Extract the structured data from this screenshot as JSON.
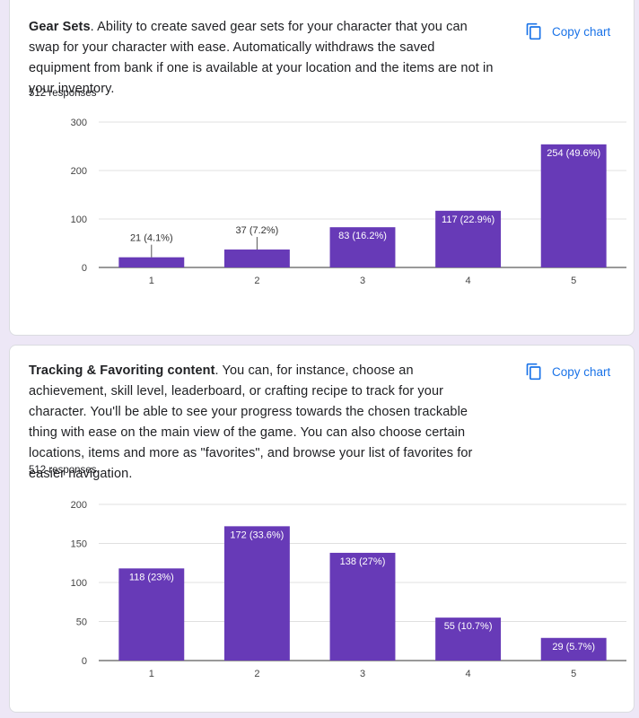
{
  "questions": [
    {
      "title": "Gear Sets",
      "description": ". Ability to create saved gear sets for your character that you can swap for your character with ease. Automatically withdraws the saved equipment from bank if one is available at your location and the items are not in your inventory.",
      "responses": "512 responses",
      "copy_label": "Copy chart"
    },
    {
      "title": "Tracking & Favoriting content",
      "description": ". You can, for instance, choose an achievement, skill level, leaderboard, or crafting recipe to track for your character. You'll be able to see your progress towards the chosen trackable thing with ease on the main view of the game. You can also choose certain locations, items and more as \"favorites\", and browse your list of favorites for easier navigation.",
      "responses": "512 responses",
      "copy_label": "Copy chart"
    }
  ],
  "colors": {
    "bar": "#673ab7",
    "accent": "#1a73e8",
    "grid": "#e0e0e0",
    "background": "#ede7f6"
  },
  "icons": {
    "copy": "copy-icon"
  },
  "chart_data": [
    {
      "type": "bar",
      "categories": [
        "1",
        "2",
        "3",
        "4",
        "5"
      ],
      "values": [
        21,
        37,
        83,
        117,
        254
      ],
      "data_labels": [
        "21 (4.1%)",
        "37 (7.2%)",
        "83 (16.2%)",
        "117 (22.9%)",
        "254 (49.6%)"
      ],
      "yticks": [
        0,
        100,
        200,
        300
      ],
      "ylim": [
        0,
        300
      ],
      "grid": true
    },
    {
      "type": "bar",
      "categories": [
        "1",
        "2",
        "3",
        "4",
        "5"
      ],
      "values": [
        118,
        172,
        138,
        55,
        29
      ],
      "data_labels": [
        "118 (23%)",
        "172 (33.6%)",
        "138 (27%)",
        "55 (10.7%)",
        "29 (5.7%)"
      ],
      "yticks": [
        0,
        50,
        100,
        150,
        200
      ],
      "ylim": [
        0,
        200
      ],
      "grid": true
    }
  ]
}
